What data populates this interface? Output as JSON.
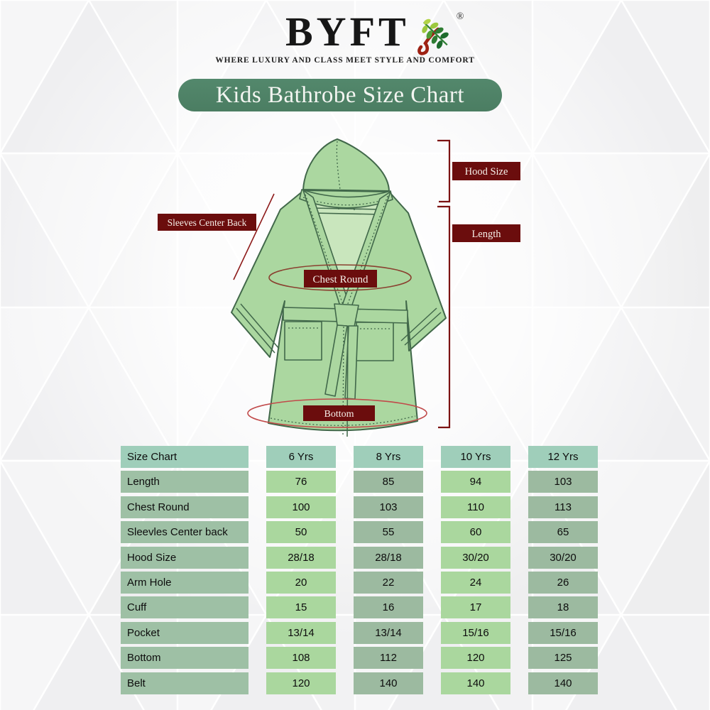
{
  "brand": {
    "name": "BYFT",
    "registered_mark": "®",
    "tagline": "WHERE LUXURY AND CLASS MEET STYLE AND COMFORT",
    "logo_icon": "leaf-branch-icon"
  },
  "title": "Kids Bathrobe Size Chart",
  "diagram": {
    "labels": {
      "hood_size": "Hood Size",
      "length": "Length",
      "sleeves_center_back": "Sleeves Center Back",
      "chest_round": "Chest Round",
      "bottom": "Bottom"
    }
  },
  "table": {
    "header": [
      "Size Chart",
      "6 Yrs",
      "8 Yrs",
      "10 Yrs",
      "12 Yrs"
    ],
    "rows": [
      {
        "label": "Length",
        "values": [
          "76",
          "85",
          "94",
          "103"
        ]
      },
      {
        "label": "Chest Round",
        "values": [
          "100",
          "103",
          "110",
          "113"
        ]
      },
      {
        "label": "Sleevles Center back",
        "values": [
          "50",
          "55",
          "60",
          "65"
        ]
      },
      {
        "label": "Hood Size",
        "values": [
          "28/18",
          "28/18",
          "30/20",
          "30/20"
        ]
      },
      {
        "label": "Arm Hole",
        "values": [
          "20",
          "22",
          "24",
          "26"
        ]
      },
      {
        "label": "Cuff",
        "values": [
          "15",
          "16",
          "17",
          "18"
        ]
      },
      {
        "label": "Pocket",
        "values": [
          "13/14",
          "13/14",
          "15/16",
          "15/16"
        ]
      },
      {
        "label": "Bottom",
        "values": [
          "108",
          "112",
          "120",
          "125"
        ]
      },
      {
        "label": "Belt",
        "values": [
          "120",
          "140",
          "140",
          "140"
        ]
      }
    ]
  },
  "colors": {
    "banner_green": "#53886c",
    "banner_text": "#f3f5f1",
    "table_header_bg": "#9fceba",
    "table_label_bg": "#9ec0a5",
    "cell_green_light": "#aad79e",
    "cell_green_gray": "#9cbaa0",
    "robe_fill": "#abd7a0",
    "robe_inner": "#c9e6bd",
    "robe_outline": "#41684a",
    "tag_maroon": "#6b0d0d",
    "tag_text": "#f5efe8",
    "bracket_red": "#7c1212",
    "ellipse_brown": "#8a4030",
    "ellipse_red": "#c14a4a",
    "logo_leaf_green": "#2e7d33",
    "logo_leaf_light": "#9cc83e",
    "logo_swoosh_red": "#9e2113"
  }
}
